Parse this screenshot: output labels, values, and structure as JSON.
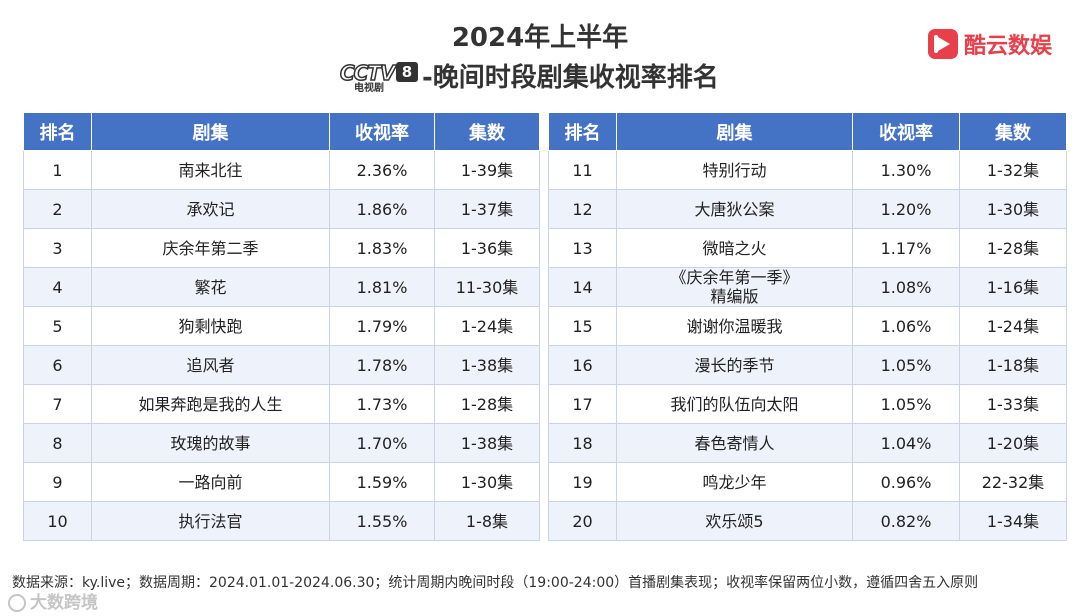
{
  "title": {
    "line1": "2024年上半年",
    "line2": "-晚间时段剧集收视率排名",
    "cctv_logo_text": "CCTV",
    "cctv_logo_num": "8",
    "cctv_logo_sub": "电视剧"
  },
  "brand": {
    "name": "酷云数娱",
    "color": "#e8404b"
  },
  "table": {
    "headers": [
      "排名",
      "剧集",
      "收视率",
      "集数"
    ],
    "header_color": "#4472c4",
    "left_rows": [
      [
        "1",
        "南来北往",
        "2.36%",
        "1-39集"
      ],
      [
        "2",
        "承欢记",
        "1.86%",
        "1-37集"
      ],
      [
        "3",
        "庆余年第二季",
        "1.83%",
        "1-36集"
      ],
      [
        "4",
        "繁花",
        "1.81%",
        "11-30集"
      ],
      [
        "5",
        "狗剩快跑",
        "1.79%",
        "1-24集"
      ],
      [
        "6",
        "追风者",
        "1.78%",
        "1-38集"
      ],
      [
        "7",
        "如果奔跑是我的人生",
        "1.73%",
        "1-28集"
      ],
      [
        "8",
        "玫瑰的故事",
        "1.70%",
        "1-38集"
      ],
      [
        "9",
        "一路向前",
        "1.59%",
        "1-30集"
      ],
      [
        "10",
        "执行法官",
        "1.55%",
        "1-8集"
      ]
    ],
    "right_rows": [
      [
        "11",
        "特别行动",
        "1.30%",
        "1-32集"
      ],
      [
        "12",
        "大唐狄公案",
        "1.20%",
        "1-30集"
      ],
      [
        "13",
        "微暗之火",
        "1.17%",
        "1-28集"
      ],
      [
        "14",
        "《庆余年第一季》精编版",
        "1.08%",
        "1-16集"
      ],
      [
        "15",
        "谢谢你温暖我",
        "1.06%",
        "1-24集"
      ],
      [
        "16",
        "漫长的季节",
        "1.05%",
        "1-18集"
      ],
      [
        "17",
        "我们的队伍向太阳",
        "1.05%",
        "1-33集"
      ],
      [
        "18",
        "春色寄情人",
        "1.04%",
        "1-20集"
      ],
      [
        "19",
        "鸣龙少年",
        "0.96%",
        "22-32集"
      ],
      [
        "20",
        "欢乐颂5",
        "0.82%",
        "1-34集"
      ]
    ]
  },
  "footnote": "数据来源：ky.live；数据周期：2024.01.01-2024.06.30；统计周期内晚间时段（19:00-24:00）首播剧集表现；收视率保留两位小数，遵循四舍五入原则",
  "watermark": "大数跨境"
}
